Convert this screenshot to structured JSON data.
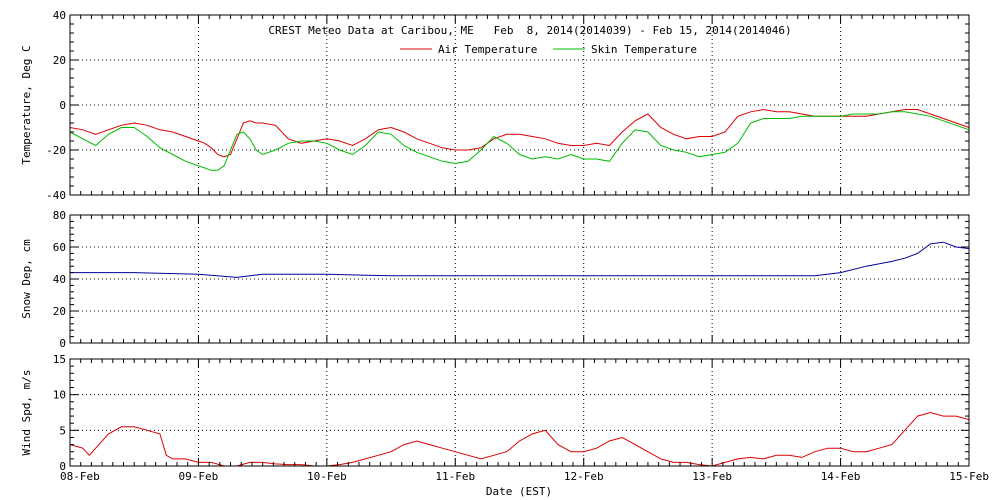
{
  "title": "CREST Meteo Data at Caribou, ME   Feb  8, 2014(2014039) - Feb 15, 2014(2014046)",
  "xlabel": "Date (EST)",
  "colors": {
    "air": "#dd0000",
    "skin": "#00bb00",
    "snow": "#000099",
    "wind": "#dd0000",
    "grid": "#000000"
  },
  "chart_data": [
    {
      "type": "line",
      "ylabel": "Temperature, Deg C",
      "ylim": [
        -40,
        40
      ],
      "yticks": [
        -40,
        -20,
        0,
        20,
        40
      ],
      "xlim": [
        0,
        7
      ],
      "xticklabels": [
        "08-Feb",
        "09-Feb",
        "10-Feb",
        "11-Feb",
        "12-Feb",
        "13-Feb",
        "14-Feb",
        "15-Feb"
      ],
      "legend_placement": "top-center",
      "grid": true,
      "series": [
        {
          "name": "Air Temperature",
          "color": "#dd0000",
          "x": [
            0,
            0.1,
            0.2,
            0.3,
            0.4,
            0.5,
            0.6,
            0.7,
            0.8,
            0.9,
            1.0,
            1.05,
            1.1,
            1.15,
            1.2,
            1.25,
            1.3,
            1.35,
            1.4,
            1.45,
            1.5,
            1.6,
            1.7,
            1.8,
            1.9,
            2.0,
            2.1,
            2.2,
            2.3,
            2.4,
            2.5,
            2.6,
            2.7,
            2.8,
            2.9,
            3.0,
            3.1,
            3.2,
            3.3,
            3.4,
            3.5,
            3.6,
            3.7,
            3.8,
            3.9,
            4.0,
            4.1,
            4.2,
            4.3,
            4.4,
            4.5,
            4.6,
            4.7,
            4.8,
            4.9,
            5.0,
            5.1,
            5.2,
            5.3,
            5.4,
            5.5,
            5.6,
            5.7,
            5.8,
            5.9,
            6.0,
            6.1,
            6.2,
            6.3,
            6.4,
            6.5,
            6.6,
            6.7,
            6.8,
            6.9,
            7.0
          ],
          "y": [
            -10,
            -11,
            -13,
            -11,
            -9,
            -8,
            -9,
            -11,
            -12,
            -14,
            -16,
            -17,
            -19,
            -22,
            -23,
            -22,
            -15,
            -8,
            -7,
            -8,
            -8,
            -9,
            -15,
            -17,
            -16,
            -15,
            -16,
            -18,
            -15,
            -11,
            -10,
            -12,
            -15,
            -17,
            -19,
            -20,
            -20,
            -19,
            -15,
            -13,
            -13,
            -14,
            -15,
            -17,
            -18,
            -18,
            -17,
            -18,
            -12,
            -7,
            -4,
            -10,
            -13,
            -15,
            -14,
            -14,
            -12,
            -5,
            -3,
            -2,
            -3,
            -3,
            -4,
            -5,
            -5,
            -5,
            -5,
            -5,
            -4,
            -3,
            -2,
            -2,
            -4,
            -6,
            -8,
            -10
          ]
        },
        {
          "name": "Skin Temperature",
          "color": "#00bb00",
          "x": [
            0,
            0.1,
            0.2,
            0.3,
            0.4,
            0.5,
            0.6,
            0.7,
            0.8,
            0.9,
            1.0,
            1.05,
            1.1,
            1.15,
            1.2,
            1.25,
            1.3,
            1.35,
            1.4,
            1.45,
            1.5,
            1.6,
            1.7,
            1.8,
            1.9,
            2.0,
            2.1,
            2.2,
            2.3,
            2.4,
            2.5,
            2.6,
            2.7,
            2.8,
            2.9,
            3.0,
            3.1,
            3.2,
            3.3,
            3.4,
            3.5,
            3.6,
            3.7,
            3.8,
            3.9,
            4.0,
            4.1,
            4.2,
            4.3,
            4.4,
            4.5,
            4.6,
            4.7,
            4.8,
            4.9,
            5.0,
            5.1,
            5.2,
            5.3,
            5.4,
            5.5,
            5.6,
            5.7,
            5.8,
            5.9,
            6.0,
            6.1,
            6.2,
            6.3,
            6.4,
            6.5,
            6.6,
            6.7,
            6.8,
            6.9,
            7.0
          ],
          "y": [
            -12,
            -15,
            -18,
            -13,
            -10,
            -10,
            -14,
            -19,
            -22,
            -25,
            -27,
            -28,
            -29,
            -29,
            -27,
            -20,
            -13,
            -12,
            -15,
            -20,
            -22,
            -20,
            -17,
            -16,
            -16,
            -17,
            -20,
            -22,
            -18,
            -12,
            -13,
            -18,
            -21,
            -23,
            -25,
            -26,
            -25,
            -20,
            -14,
            -17,
            -22,
            -24,
            -23,
            -24,
            -22,
            -24,
            -24,
            -25,
            -17,
            -11,
            -12,
            -18,
            -20,
            -21,
            -23,
            -22,
            -21,
            -17,
            -8,
            -6,
            -6,
            -6,
            -5,
            -5,
            -5,
            -5,
            -4,
            -4,
            -4,
            -3,
            -3,
            -4,
            -5,
            -7,
            -9,
            -11
          ]
        }
      ]
    },
    {
      "type": "line",
      "ylabel": "Snow Dep, cm",
      "ylim": [
        0,
        80
      ],
      "yticks": [
        0,
        20,
        40,
        60,
        80
      ],
      "xlim": [
        0,
        7
      ],
      "grid": true,
      "series": [
        {
          "color": "#000099",
          "x": [
            0,
            0.5,
            1.0,
            1.3,
            1.5,
            2.0,
            2.5,
            3.0,
            3.5,
            4.0,
            4.5,
            5.0,
            5.5,
            5.8,
            6.0,
            6.2,
            6.4,
            6.5,
            6.6,
            6.7,
            6.8,
            6.9,
            7.0
          ],
          "y": [
            44,
            44,
            43,
            41,
            43,
            43,
            42,
            42,
            42,
            42,
            42,
            42,
            42,
            42,
            44,
            48,
            51,
            53,
            56,
            62,
            63,
            60,
            59
          ]
        }
      ]
    },
    {
      "type": "line",
      "ylabel": "Wind Spd, m/s",
      "ylim": [
        0,
        15
      ],
      "yticks": [
        0,
        5,
        10,
        15
      ],
      "xlim": [
        0,
        7
      ],
      "grid": true,
      "series": [
        {
          "color": "#dd0000",
          "x": [
            0,
            0.1,
            0.15,
            0.2,
            0.3,
            0.4,
            0.5,
            0.6,
            0.7,
            0.75,
            0.8,
            0.9,
            1.0,
            1.1,
            1.2,
            1.3,
            1.4,
            1.5,
            1.6,
            1.7,
            1.8,
            1.9,
            2.0,
            2.1,
            2.2,
            2.3,
            2.4,
            2.5,
            2.6,
            2.7,
            2.8,
            2.9,
            3.0,
            3.1,
            3.2,
            3.3,
            3.4,
            3.5,
            3.6,
            3.7,
            3.8,
            3.9,
            4.0,
            4.1,
            4.2,
            4.3,
            4.4,
            4.5,
            4.6,
            4.7,
            4.8,
            4.9,
            5.0,
            5.1,
            5.2,
            5.3,
            5.4,
            5.5,
            5.6,
            5.7,
            5.8,
            5.9,
            6.0,
            6.1,
            6.2,
            6.3,
            6.4,
            6.5,
            6.6,
            6.7,
            6.8,
            6.9,
            7.0
          ],
          "y": [
            3,
            2.5,
            1.5,
            2.5,
            4.5,
            5.5,
            5.5,
            5,
            4.5,
            1.5,
            1,
            1,
            0.5,
            0.5,
            0,
            0,
            0.5,
            0.5,
            0.3,
            0.2,
            0.2,
            0,
            0,
            0.2,
            0.5,
            1,
            1.5,
            2,
            3,
            3.5,
            3,
            2.5,
            2,
            1.5,
            1,
            1.5,
            2,
            3.5,
            4.5,
            5,
            3,
            2,
            2,
            2.5,
            3.5,
            4,
            3,
            2,
            1,
            0.5,
            0.5,
            0.2,
            0,
            0.5,
            1,
            1.2,
            1,
            1.5,
            1.5,
            1.2,
            2,
            2.5,
            2.5,
            2,
            2,
            2.5,
            3,
            5,
            7,
            7.5,
            7,
            7,
            6.5
          ]
        }
      ]
    }
  ]
}
